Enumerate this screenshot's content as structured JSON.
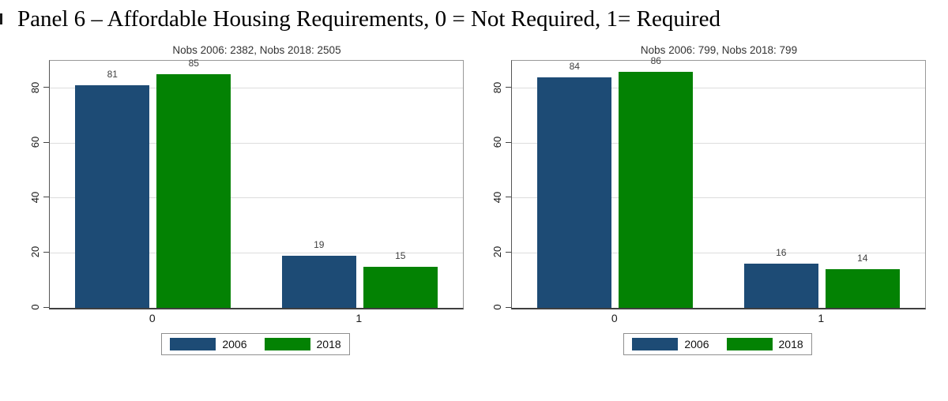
{
  "title": "Panel 6 – Affordable Housing Requirements, 0 = Not Required, 1= Required",
  "colors": {
    "series_2006": "#1d4b75",
    "series_2018": "#038203",
    "grid": "#dddddd",
    "axis": "#444444",
    "plot_border": "#999999",
    "bar_label": "#3f3f3f",
    "tick_label": "#1a1a1a",
    "chart_title": "#333333",
    "legend_border": "#8f8f8f"
  },
  "chart_data": [
    {
      "type": "bar",
      "title": "Nobs 2006: 2382, Nobs 2018: 2505",
      "categories": [
        "0",
        "1"
      ],
      "series": [
        {
          "name": "2006",
          "color": "#1d4b75",
          "values": [
            81,
            19
          ]
        },
        {
          "name": "2018",
          "color": "#038203",
          "values": [
            85,
            15
          ]
        }
      ],
      "ylim": [
        0,
        90
      ],
      "yticks": [
        0,
        20,
        40,
        60,
        80
      ],
      "grid": true,
      "bar_labels": true,
      "legend_position": "bottom"
    },
    {
      "type": "bar",
      "title": "Nobs 2006: 799, Nobs 2018: 799",
      "categories": [
        "0",
        "1"
      ],
      "series": [
        {
          "name": "2006",
          "color": "#1d4b75",
          "values": [
            84,
            16
          ]
        },
        {
          "name": "2018",
          "color": "#038203",
          "values": [
            86,
            14
          ]
        }
      ],
      "ylim": [
        0,
        90
      ],
      "yticks": [
        0,
        20,
        40,
        60,
        80
      ],
      "grid": true,
      "bar_labels": true,
      "legend_position": "bottom"
    }
  ]
}
